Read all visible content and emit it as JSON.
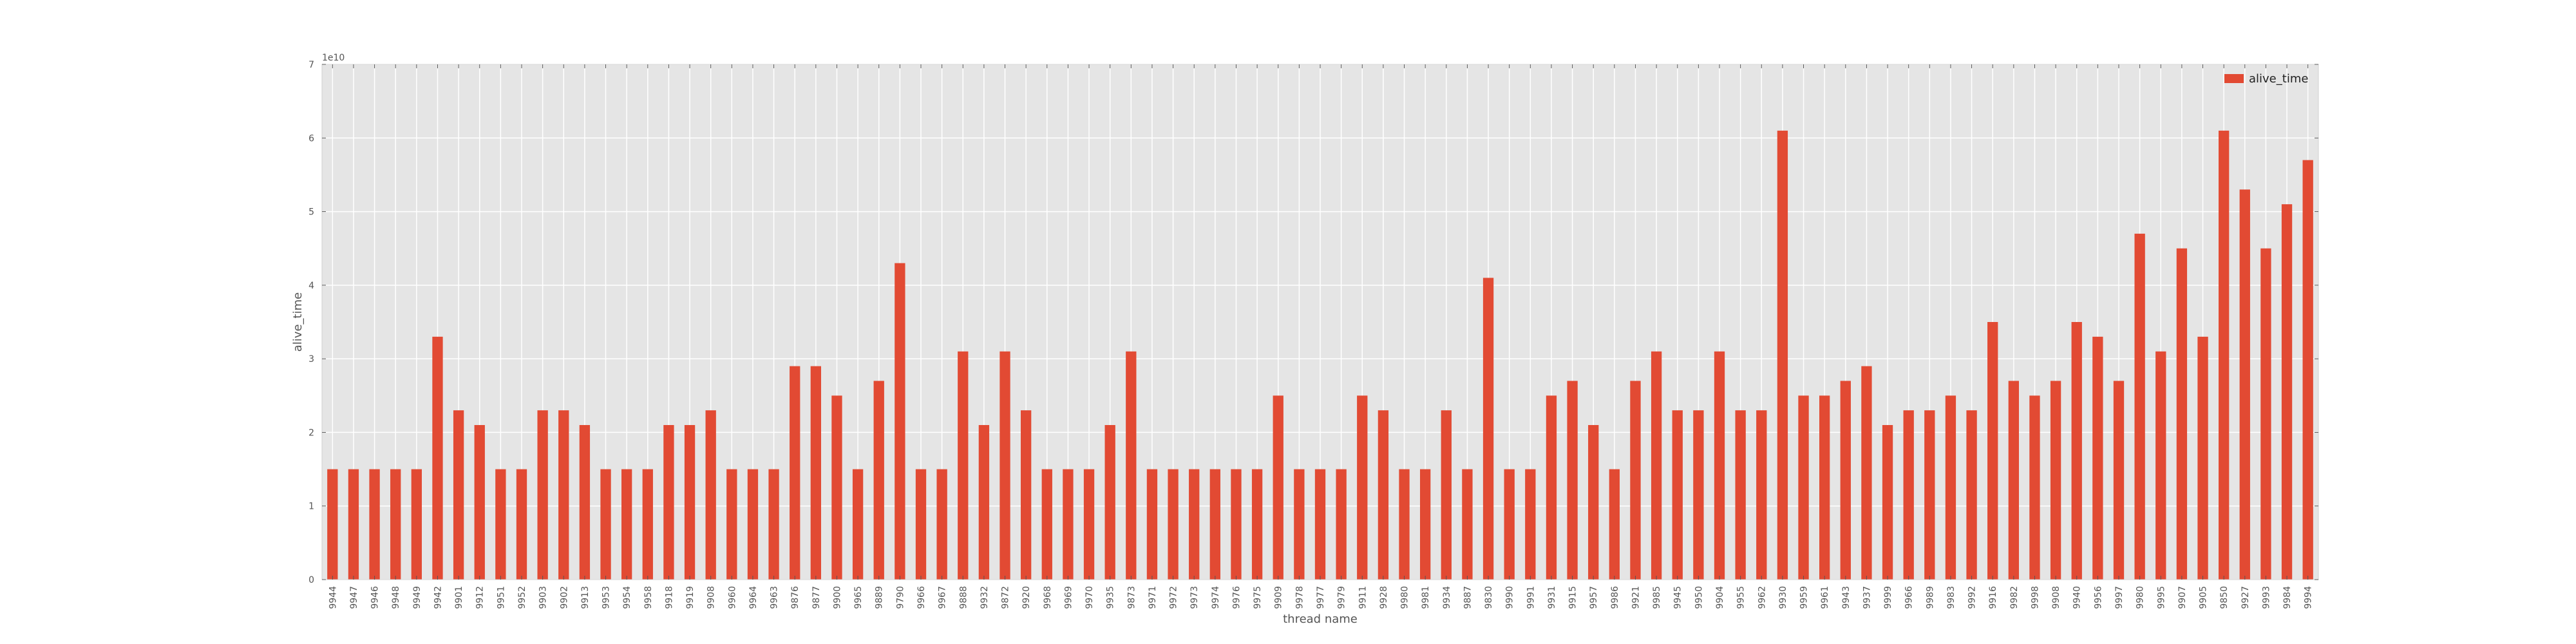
{
  "chart_data": {
    "type": "bar",
    "xlabel": "thread name",
    "ylabel": "alive_time",
    "y_scale_label": "1e10",
    "ylim": [
      0,
      70000000000
    ],
    "yticks": [
      0,
      10000000000,
      20000000000,
      30000000000,
      40000000000,
      50000000000,
      60000000000,
      70000000000
    ],
    "ytick_labels": [
      "0",
      "1",
      "2",
      "3",
      "4",
      "5",
      "6",
      "7"
    ],
    "grid": true,
    "legend_position": "top-right",
    "colors": {
      "bar": "#e24a33",
      "plot_bg": "#e5e5e5",
      "grid": "#ffffff"
    },
    "categories": [
      "9944",
      "9947",
      "9946",
      "9948",
      "9949",
      "9942",
      "9901",
      "9912",
      "9951",
      "9952",
      "9903",
      "9902",
      "9913",
      "9953",
      "9954",
      "9958",
      "9918",
      "9919",
      "9908",
      "9960",
      "9964",
      "9963",
      "9876",
      "9877",
      "9900",
      "9965",
      "9889",
      "9790",
      "9966",
      "9967",
      "9888",
      "9932",
      "9872",
      "9920",
      "9968",
      "9969",
      "9970",
      "9935",
      "9873",
      "9971",
      "9972",
      "9973",
      "9974",
      "9976",
      "9975",
      "9909",
      "9978",
      "9977",
      "9979",
      "9911",
      "9928",
      "9980",
      "9981",
      "9934",
      "9887",
      "9830",
      "9990",
      "9991",
      "9931",
      "9915",
      "9957",
      "9986",
      "9921",
      "9985",
      "9945",
      "9950",
      "9904",
      "9955",
      "9962",
      "9930",
      "9959",
      "9961",
      "9943",
      "9937",
      "9999",
      "9966",
      "9989",
      "9983",
      "9992",
      "9916",
      "9982",
      "9998",
      "9908",
      "9940",
      "9956",
      "9997",
      "9980",
      "9995",
      "9907",
      "9905",
      "9850",
      "9927",
      "9993",
      "9984",
      "9994"
    ],
    "series": [
      {
        "name": "alive_time",
        "values": [
          15000000000,
          15000000000,
          15000000000,
          15000000000,
          15000000000,
          33000000000,
          23000000000,
          21000000000,
          15000000000,
          15000000000,
          23000000000,
          23000000000,
          21000000000,
          15000000000,
          15000000000,
          15000000000,
          21000000000,
          21000000000,
          23000000000,
          15000000000,
          15000000000,
          15000000000,
          29000000000,
          29000000000,
          25000000000,
          15000000000,
          27000000000,
          43000000000,
          15000000000,
          15000000000,
          31000000000,
          21000000000,
          31000000000,
          23000000000,
          15000000000,
          15000000000,
          15000000000,
          21000000000,
          31000000000,
          15000000000,
          15000000000,
          15000000000,
          15000000000,
          15000000000,
          15000000000,
          25000000000,
          15000000000,
          15000000000,
          15000000000,
          25000000000,
          23000000000,
          15000000000,
          15000000000,
          23000000000,
          15000000000,
          41000000000,
          15000000000,
          15000000000,
          25000000000,
          27000000000,
          21000000000,
          15000000000,
          27000000000,
          31000000000,
          23000000000,
          23000000000,
          31000000000,
          23000000000,
          23000000000,
          61000000000,
          25000000000,
          25000000000,
          27000000000,
          29000000000,
          21000000000,
          23000000000,
          23000000000,
          25000000000,
          23000000000,
          35000000000,
          27000000000,
          25000000000,
          27000000000,
          35000000000,
          33000000000,
          27000000000,
          47000000000,
          31000000000,
          45000000000,
          33000000000,
          61000000000,
          53000000000,
          45000000000,
          51000000000,
          57000000000
        ]
      }
    ]
  }
}
